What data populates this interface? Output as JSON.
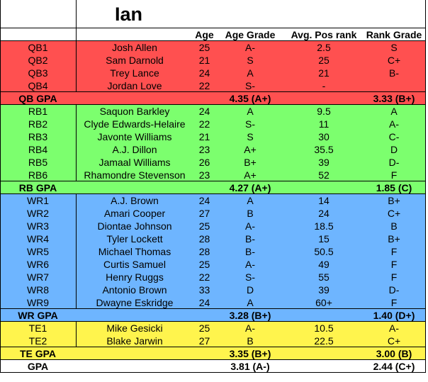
{
  "title": "Ian",
  "headers": [
    "",
    "",
    "Age",
    "Age Grade",
    "Avg. Pos rank",
    "Rank Grade"
  ],
  "groups": [
    {
      "color": "#ff5050",
      "players": [
        {
          "pos": "QB1",
          "name": "Josh Allen",
          "age": "25",
          "age_grade": "A-",
          "avg_pos_rank": "2.5",
          "rank_grade": "S"
        },
        {
          "pos": "QB2",
          "name": "Sam Darnold",
          "age": "21",
          "age_grade": "S",
          "avg_pos_rank": "25",
          "rank_grade": "C+"
        },
        {
          "pos": "QB3",
          "name": "Trey Lance",
          "age": "24",
          "age_grade": "A",
          "avg_pos_rank": "21",
          "rank_grade": "B-"
        },
        {
          "pos": "QB4",
          "name": "Jordan Love",
          "age": "22",
          "age_grade": "S-",
          "avg_pos_rank": "-",
          "rank_grade": ""
        }
      ],
      "gpa": {
        "label": "QB GPA",
        "age_gpa": "4.35 (A+)",
        "rank_gpa": "3.33 (B+)"
      }
    },
    {
      "color": "#7cff6e",
      "players": [
        {
          "pos": "RB1",
          "name": "Saquon Barkley",
          "age": "24",
          "age_grade": "A",
          "avg_pos_rank": "9.5",
          "rank_grade": "A"
        },
        {
          "pos": "RB2",
          "name": "Clyde Edwards-Helaire",
          "age": "22",
          "age_grade": "S-",
          "avg_pos_rank": "11",
          "rank_grade": "A-"
        },
        {
          "pos": "RB3",
          "name": "Javonte Williams",
          "age": "21",
          "age_grade": "S",
          "avg_pos_rank": "30",
          "rank_grade": "C-"
        },
        {
          "pos": "RB4",
          "name": "A.J. Dillon",
          "age": "23",
          "age_grade": "A+",
          "avg_pos_rank": "35.5",
          "rank_grade": "D"
        },
        {
          "pos": "RB5",
          "name": "Jamaal Williams",
          "age": "26",
          "age_grade": "B+",
          "avg_pos_rank": "39",
          "rank_grade": "D-"
        },
        {
          "pos": "RB6",
          "name": "Rhamondre Stevenson",
          "age": "23",
          "age_grade": "A+",
          "avg_pos_rank": "52",
          "rank_grade": "F"
        }
      ],
      "gpa": {
        "label": "RB GPA",
        "age_gpa": "4.27 (A+)",
        "rank_gpa": "1.85 (C)"
      }
    },
    {
      "color": "#6eb5ff",
      "players": [
        {
          "pos": "WR1",
          "name": "A.J. Brown",
          "age": "24",
          "age_grade": "A",
          "avg_pos_rank": "14",
          "rank_grade": "B+"
        },
        {
          "pos": "WR2",
          "name": "Amari Cooper",
          "age": "27",
          "age_grade": "B",
          "avg_pos_rank": "24",
          "rank_grade": "C+"
        },
        {
          "pos": "WR3",
          "name": "Diontae Johnson",
          "age": "25",
          "age_grade": "A-",
          "avg_pos_rank": "18.5",
          "rank_grade": "B"
        },
        {
          "pos": "WR4",
          "name": "Tyler Lockett",
          "age": "28",
          "age_grade": "B-",
          "avg_pos_rank": "15",
          "rank_grade": "B+"
        },
        {
          "pos": "WR5",
          "name": "Michael Thomas",
          "age": "28",
          "age_grade": "B-",
          "avg_pos_rank": "50.5",
          "rank_grade": "F"
        },
        {
          "pos": "WR6",
          "name": "Curtis Samuel",
          "age": "25",
          "age_grade": "A-",
          "avg_pos_rank": "49",
          "rank_grade": "F"
        },
        {
          "pos": "WR7",
          "name": "Henry Ruggs",
          "age": "22",
          "age_grade": "S-",
          "avg_pos_rank": "55",
          "rank_grade": "F"
        },
        {
          "pos": "WR8",
          "name": "Antonio Brown",
          "age": "33",
          "age_grade": "D",
          "avg_pos_rank": "39",
          "rank_grade": "D-"
        },
        {
          "pos": "WR9",
          "name": "Dwayne Eskridge",
          "age": "24",
          "age_grade": "A",
          "avg_pos_rank": "60+",
          "rank_grade": "F"
        }
      ],
      "gpa": {
        "label": "WR GPA",
        "age_gpa": "3.28 (B+)",
        "rank_gpa": "1.40 (D+)"
      }
    },
    {
      "color": "#fff44d",
      "players": [
        {
          "pos": "TE1",
          "name": "Mike Gesicki",
          "age": "25",
          "age_grade": "A-",
          "avg_pos_rank": "10.5",
          "rank_grade": "A-"
        },
        {
          "pos": "TE2",
          "name": "Blake Jarwin",
          "age": "27",
          "age_grade": "B",
          "avg_pos_rank": "22.5",
          "rank_grade": "C+"
        }
      ],
      "gpa": {
        "label": "TE GPA",
        "age_gpa": "3.35 (B+)",
        "rank_gpa": "3.00 (B)"
      }
    }
  ],
  "total": {
    "label": "GPA",
    "age_gpa": "3.81 (A-)",
    "rank_gpa": "2.44 (C+)"
  }
}
